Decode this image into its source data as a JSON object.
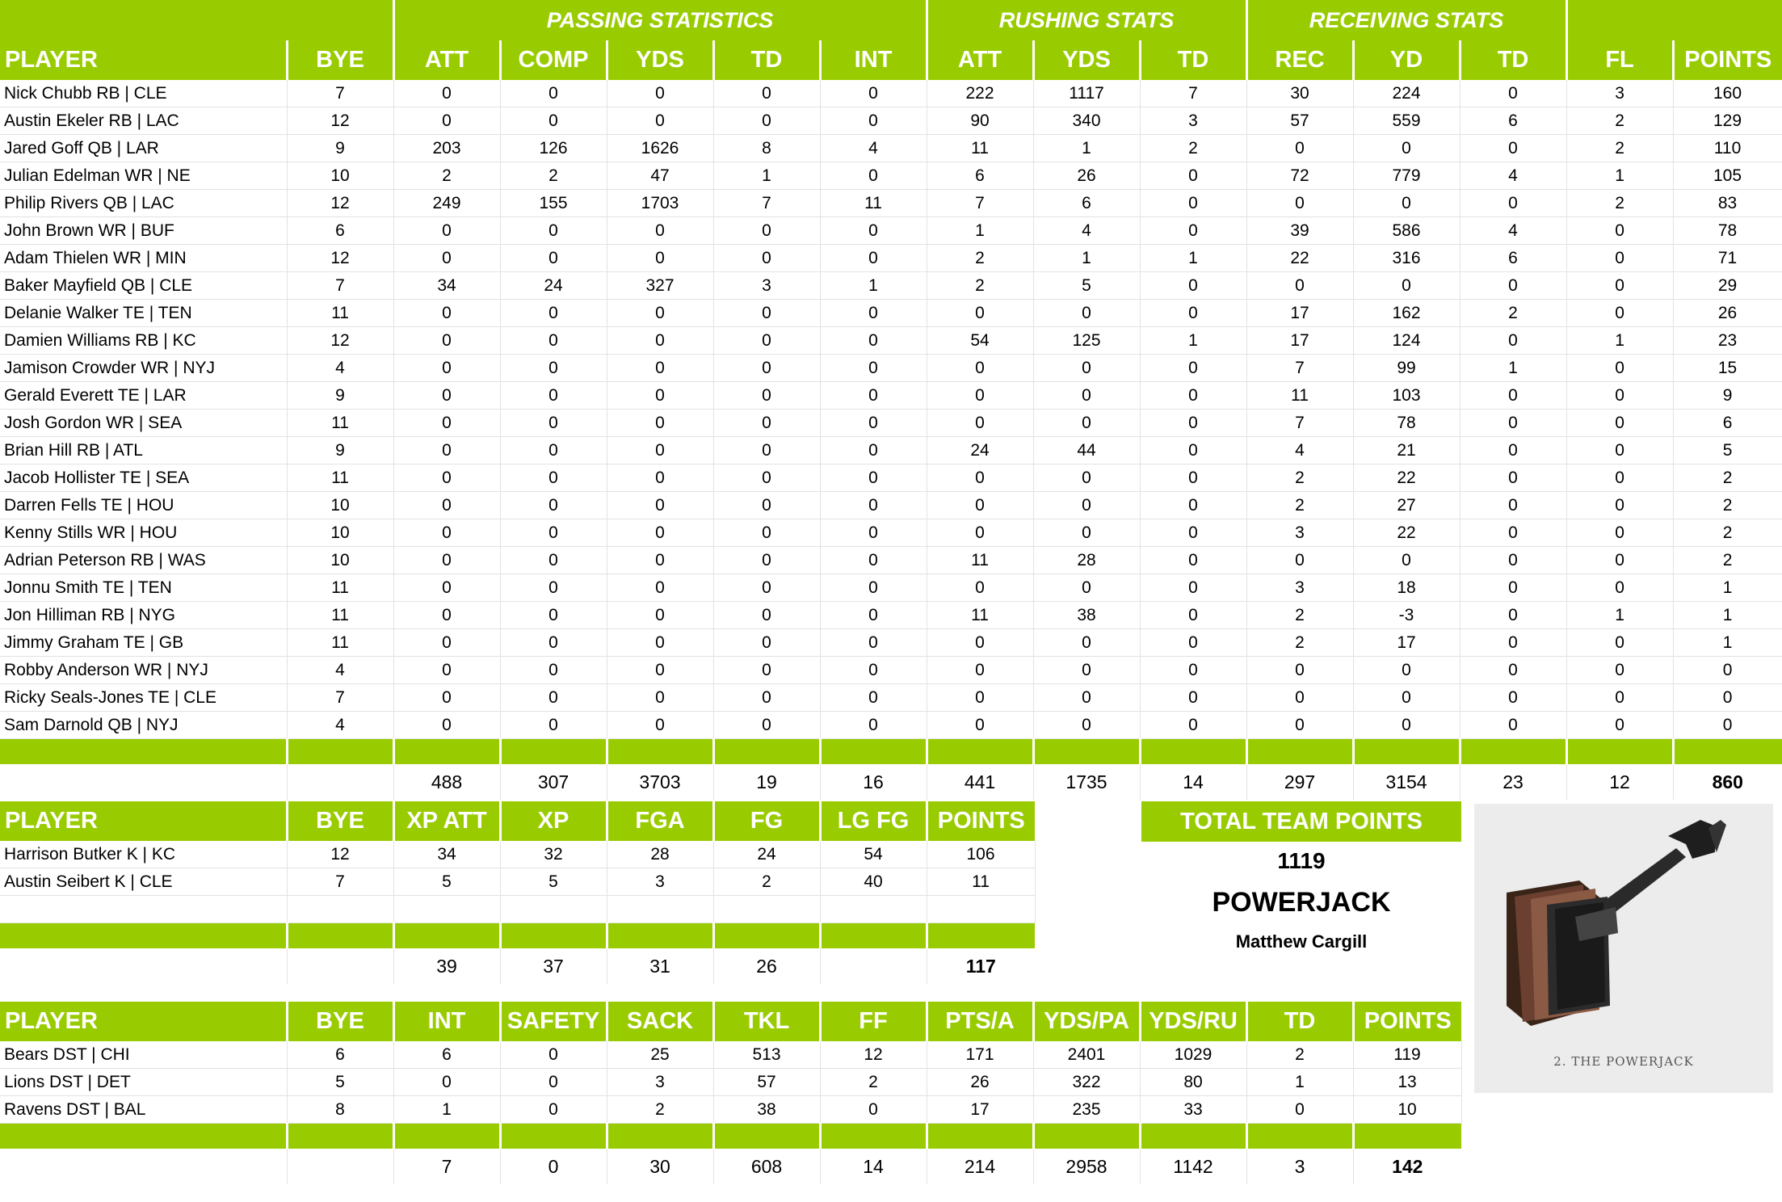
{
  "colors": {
    "accent": "#99cc00",
    "header_text": "#ffffff"
  },
  "offense": {
    "groups": {
      "passing": "PASSING STATISTICS",
      "rushing": "RUSHING STATS",
      "receiving": "RECEIVING STATS"
    },
    "headers": [
      "PLAYER",
      "BYE",
      "ATT",
      "COMP",
      "YDS",
      "TD",
      "INT",
      "ATT",
      "YDS",
      "TD",
      "REC",
      "YD",
      "TD",
      "FL",
      "POINTS"
    ],
    "rows": [
      [
        "Nick Chubb RB | CLE",
        "7",
        "0",
        "0",
        "0",
        "0",
        "0",
        "222",
        "1117",
        "7",
        "30",
        "224",
        "0",
        "3",
        "160"
      ],
      [
        "Austin Ekeler RB | LAC",
        "12",
        "0",
        "0",
        "0",
        "0",
        "0",
        "90",
        "340",
        "3",
        "57",
        "559",
        "6",
        "2",
        "129"
      ],
      [
        "Jared Goff QB | LAR",
        "9",
        "203",
        "126",
        "1626",
        "8",
        "4",
        "11",
        "1",
        "2",
        "0",
        "0",
        "0",
        "2",
        "110"
      ],
      [
        "Julian Edelman WR | NE",
        "10",
        "2",
        "2",
        "47",
        "1",
        "0",
        "6",
        "26",
        "0",
        "72",
        "779",
        "4",
        "1",
        "105"
      ],
      [
        "Philip Rivers QB | LAC",
        "12",
        "249",
        "155",
        "1703",
        "7",
        "11",
        "7",
        "6",
        "0",
        "0",
        "0",
        "0",
        "2",
        "83"
      ],
      [
        "John Brown WR | BUF",
        "6",
        "0",
        "0",
        "0",
        "0",
        "0",
        "1",
        "4",
        "0",
        "39",
        "586",
        "4",
        "0",
        "78"
      ],
      [
        "Adam Thielen WR | MIN",
        "12",
        "0",
        "0",
        "0",
        "0",
        "0",
        "2",
        "1",
        "1",
        "22",
        "316",
        "6",
        "0",
        "71"
      ],
      [
        "Baker Mayfield QB | CLE",
        "7",
        "34",
        "24",
        "327",
        "3",
        "1",
        "2",
        "5",
        "0",
        "0",
        "0",
        "0",
        "0",
        "29"
      ],
      [
        "Delanie Walker TE | TEN",
        "11",
        "0",
        "0",
        "0",
        "0",
        "0",
        "0",
        "0",
        "0",
        "17",
        "162",
        "2",
        "0",
        "26"
      ],
      [
        "Damien Williams RB | KC",
        "12",
        "0",
        "0",
        "0",
        "0",
        "0",
        "54",
        "125",
        "1",
        "17",
        "124",
        "0",
        "1",
        "23"
      ],
      [
        "Jamison Crowder WR | NYJ",
        "4",
        "0",
        "0",
        "0",
        "0",
        "0",
        "0",
        "0",
        "0",
        "7",
        "99",
        "1",
        "0",
        "15"
      ],
      [
        "Gerald Everett TE | LAR",
        "9",
        "0",
        "0",
        "0",
        "0",
        "0",
        "0",
        "0",
        "0",
        "11",
        "103",
        "0",
        "0",
        "9"
      ],
      [
        "Josh Gordon WR | SEA",
        "11",
        "0",
        "0",
        "0",
        "0",
        "0",
        "0",
        "0",
        "0",
        "7",
        "78",
        "0",
        "0",
        "6"
      ],
      [
        "Brian Hill RB | ATL",
        "9",
        "0",
        "0",
        "0",
        "0",
        "0",
        "24",
        "44",
        "0",
        "4",
        "21",
        "0",
        "0",
        "5"
      ],
      [
        "Jacob Hollister TE | SEA",
        "11",
        "0",
        "0",
        "0",
        "0",
        "0",
        "0",
        "0",
        "0",
        "2",
        "22",
        "0",
        "0",
        "2"
      ],
      [
        "Darren Fells TE | HOU",
        "10",
        "0",
        "0",
        "0",
        "0",
        "0",
        "0",
        "0",
        "0",
        "2",
        "27",
        "0",
        "0",
        "2"
      ],
      [
        "Kenny Stills WR | HOU",
        "10",
        "0",
        "0",
        "0",
        "0",
        "0",
        "0",
        "0",
        "0",
        "3",
        "22",
        "0",
        "0",
        "2"
      ],
      [
        "Adrian Peterson RB | WAS",
        "10",
        "0",
        "0",
        "0",
        "0",
        "0",
        "11",
        "28",
        "0",
        "0",
        "0",
        "0",
        "0",
        "2"
      ],
      [
        "Jonnu Smith TE | TEN",
        "11",
        "0",
        "0",
        "0",
        "0",
        "0",
        "0",
        "0",
        "0",
        "3",
        "18",
        "0",
        "0",
        "1"
      ],
      [
        "Jon Hilliman RB | NYG",
        "11",
        "0",
        "0",
        "0",
        "0",
        "0",
        "11",
        "38",
        "0",
        "2",
        "-3",
        "0",
        "1",
        "1"
      ],
      [
        "Jimmy Graham TE | GB",
        "11",
        "0",
        "0",
        "0",
        "0",
        "0",
        "0",
        "0",
        "0",
        "2",
        "17",
        "0",
        "0",
        "1"
      ],
      [
        "Robby Anderson WR | NYJ",
        "4",
        "0",
        "0",
        "0",
        "0",
        "0",
        "0",
        "0",
        "0",
        "0",
        "0",
        "0",
        "0",
        "0"
      ],
      [
        "Ricky Seals-Jones TE | CLE",
        "7",
        "0",
        "0",
        "0",
        "0",
        "0",
        "0",
        "0",
        "0",
        "0",
        "0",
        "0",
        "0",
        "0"
      ],
      [
        "Sam Darnold QB | NYJ",
        "4",
        "0",
        "0",
        "0",
        "0",
        "0",
        "0",
        "0",
        "0",
        "0",
        "0",
        "0",
        "0",
        "0"
      ]
    ],
    "totals": [
      "",
      "",
      "488",
      "307",
      "3703",
      "19",
      "16",
      "441",
      "1735",
      "14",
      "297",
      "3154",
      "23",
      "12",
      "860"
    ]
  },
  "kickers": {
    "headers": [
      "PLAYER",
      "BYE",
      "XP ATT",
      "XP",
      "FGA",
      "FG",
      "LG FG",
      "POINTS"
    ],
    "rows": [
      [
        "Harrison Butker K | KC",
        "12",
        "34",
        "32",
        "28",
        "24",
        "54",
        "106"
      ],
      [
        "Austin Seibert K | CLE",
        "7",
        "5",
        "5",
        "3",
        "2",
        "40",
        "11"
      ]
    ],
    "totals": [
      "",
      "",
      "39",
      "37",
      "31",
      "26",
      "",
      "117"
    ]
  },
  "defense": {
    "headers": [
      "PLAYER",
      "BYE",
      "INT",
      "SAFETY",
      "SACK",
      "TKL",
      "FF",
      "PTS/A",
      "YDS/PA",
      "YDS/RU",
      "TD",
      "POINTS"
    ],
    "rows": [
      [
        "Bears DST | CHI",
        "6",
        "6",
        "0",
        "25",
        "513",
        "12",
        "171",
        "2401",
        "1029",
        "2",
        "119"
      ],
      [
        "Lions DST | DET",
        "5",
        "0",
        "0",
        "3",
        "57",
        "2",
        "26",
        "322",
        "80",
        "1",
        "13"
      ],
      [
        "Ravens DST | BAL",
        "8",
        "1",
        "0",
        "2",
        "38",
        "0",
        "17",
        "235",
        "33",
        "0",
        "10"
      ]
    ],
    "totals": [
      "",
      "",
      "7",
      "0",
      "30",
      "608",
      "14",
      "214",
      "2958",
      "1142",
      "3",
      "142"
    ]
  },
  "team": {
    "header": "TOTAL TEAM POINTS",
    "points": "1119",
    "name": "POWERJACK",
    "owner": "Matthew Cargill"
  },
  "logo": {
    "icon": "powerjack-tool-image",
    "caption": "2. THE POWERJACK"
  }
}
